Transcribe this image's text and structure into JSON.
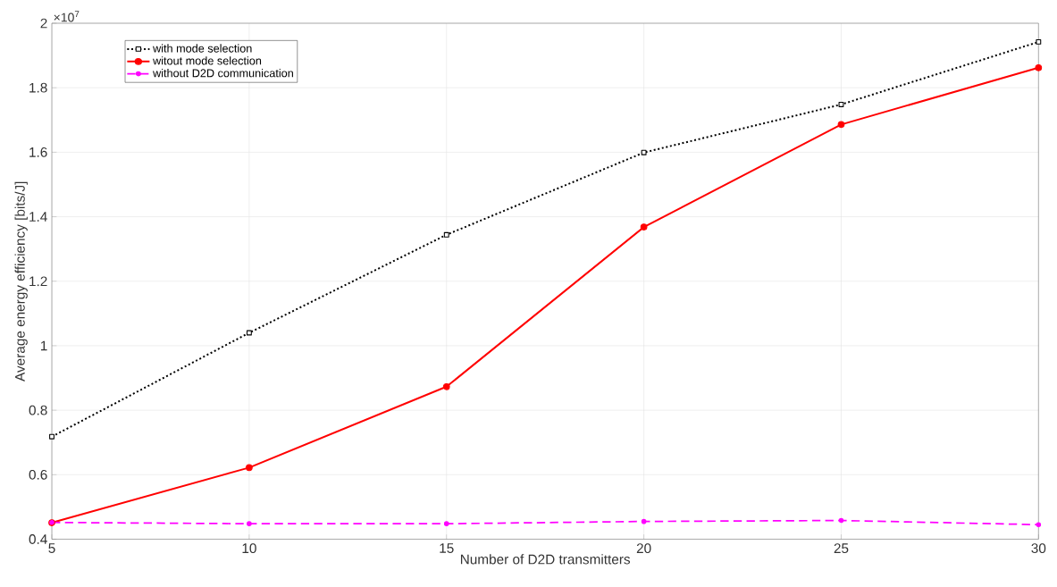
{
  "chart_data": {
    "type": "line",
    "xlabel": "Number of D2D transmitters",
    "ylabel": "Average energy efficiency [bits/J]",
    "annotations": [
      "×10$^{7}$"
    ],
    "x": [
      5,
      10,
      15,
      20,
      25,
      30
    ],
    "series": [
      {
        "name": "with mode selection",
        "color": "#000000",
        "marker": "square",
        "line_style": "dotted",
        "values": [
          0.718,
          1.04,
          1.344,
          1.599,
          1.748,
          1.942
        ]
      },
      {
        "name": "witout mode selection",
        "color": "#ff0000",
        "marker": "circle",
        "line_style": "solid",
        "values": [
          0.451,
          0.622,
          0.873,
          1.368,
          1.686,
          1.862
        ]
      },
      {
        "name": "without D2D communication",
        "color": "#ff00ff",
        "marker": "circle",
        "line_style": "dashed",
        "values": [
          0.452,
          0.448,
          0.448,
          0.455,
          0.458,
          0.445
        ]
      }
    ],
    "xlim": [
      5,
      30
    ],
    "xticks": [
      5,
      10,
      15,
      20,
      25,
      30
    ],
    "ylim": [
      0.4,
      2
    ],
    "yticks": [
      0.4,
      0.6,
      0.8,
      1,
      1.2,
      1.4,
      1.6,
      1.8,
      2
    ],
    "grid": true,
    "legend": "top left"
  }
}
